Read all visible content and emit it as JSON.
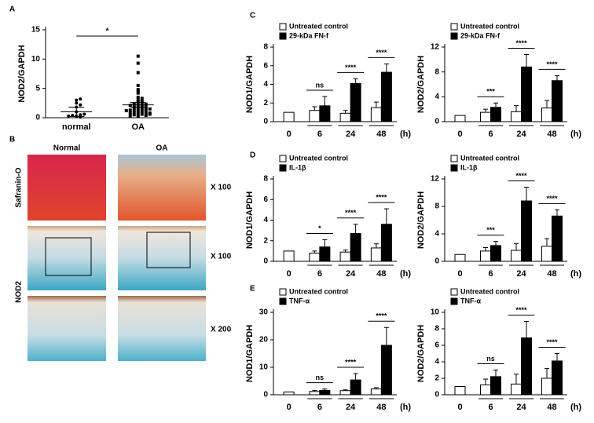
{
  "panel_labels": [
    "A",
    "B",
    "C",
    "D",
    "E"
  ],
  "histology": {
    "columns": [
      "Normal",
      "OA"
    ],
    "rows": [
      "Safranin-O",
      "NOD2"
    ],
    "magnifications": [
      "X 100",
      "X 100",
      "X 200"
    ]
  },
  "chart_data": [
    {
      "type": "dot",
      "ylabel": "NOD2/GAPDH",
      "categories": [
        "normal",
        "OA"
      ],
      "markers": [
        "circle",
        "square"
      ],
      "values": [
        [
          0.2,
          0.3,
          0.5,
          1.8,
          2.2,
          2.5,
          3.0,
          3.2,
          0.4,
          0.1,
          0.6,
          1.0,
          0.3
        ],
        [
          10.5,
          9.3,
          7.7,
          5.5,
          4.8,
          4.5,
          4.2,
          3.5,
          3.3,
          3.0,
          2.8,
          2.7,
          2.5,
          2.4,
          2.3,
          2.2,
          2.0,
          1.9,
          1.8,
          1.7,
          1.6,
          1.5,
          1.4,
          1.3,
          1.2,
          1.1,
          1.0,
          0.9,
          0.8,
          0.7,
          0.6,
          0.5,
          0.4,
          0.3,
          0.2,
          0.8,
          1.5,
          2.1,
          1.2,
          0.6
        ]
      ],
      "means": [
        1.0,
        2.2
      ],
      "errors": [
        0.8,
        0.4
      ],
      "significance": "*",
      "ylim": [
        0,
        15
      ],
      "yticks": [
        0,
        5,
        10,
        15
      ]
    },
    {
      "type": "bar",
      "ylabel": "NOD1/GAPDH",
      "xlabel": "(h)",
      "categories": [
        "0",
        "6",
        "24",
        "48"
      ],
      "series": [
        {
          "name": "Untreated control",
          "color": "#ffffff",
          "values": [
            1,
            1.2,
            0.9,
            1.5
          ],
          "errors": [
            0,
            0.4,
            0.3,
            0.6
          ]
        },
        {
          "name": "29-kDa FN-f",
          "color": "#000000",
          "values": [
            null,
            1.7,
            4.1,
            5.3
          ],
          "errors": [
            null,
            1.0,
            0.5,
            0.9
          ]
        }
      ],
      "significance": [
        null,
        "ns",
        "****",
        "****"
      ],
      "ylim": [
        0,
        8
      ],
      "yticks": [
        0,
        2,
        4,
        6,
        8
      ]
    },
    {
      "type": "bar",
      "ylabel": "NOD2/GAPDH",
      "xlabel": "(h)",
      "categories": [
        "0",
        "6",
        "24",
        "48"
      ],
      "series": [
        {
          "name": "Untreated control",
          "color": "#ffffff",
          "values": [
            1,
            1.5,
            1.6,
            2.2
          ],
          "errors": [
            0,
            0.5,
            1.0,
            1.2
          ]
        },
        {
          "name": "29-kDa FN-f",
          "color": "#000000",
          "values": [
            null,
            2.3,
            8.8,
            6.6
          ],
          "errors": [
            null,
            0.7,
            2.0,
            0.8
          ]
        }
      ],
      "significance": [
        null,
        "***",
        "****",
        "****"
      ],
      "ylim": [
        0,
        12
      ],
      "yticks": [
        0,
        4,
        8,
        12
      ]
    },
    {
      "type": "bar",
      "ylabel": "NOD1/GAPDH",
      "xlabel": "(h)",
      "categories": [
        "0",
        "6",
        "24",
        "48"
      ],
      "series": [
        {
          "name": "Untreated control",
          "color": "#ffffff",
          "values": [
            1,
            0.8,
            0.9,
            1.3
          ],
          "errors": [
            0,
            0.2,
            0.2,
            0.4
          ]
        },
        {
          "name": "IL-1β",
          "color": "#000000",
          "values": [
            null,
            1.4,
            2.7,
            3.6
          ],
          "errors": [
            null,
            0.7,
            0.9,
            1.5
          ]
        }
      ],
      "significance": [
        null,
        "*",
        "****",
        "****"
      ],
      "ylim": [
        0,
        8
      ],
      "yticks": [
        0,
        2,
        4,
        6,
        8
      ]
    },
    {
      "type": "bar",
      "ylabel": "NOD2/GAPDH",
      "xlabel": "(h)",
      "categories": [
        "0",
        "6",
        "24",
        "48"
      ],
      "series": [
        {
          "name": "Untreated control",
          "color": "#ffffff",
          "values": [
            1,
            1.5,
            1.6,
            2.2
          ],
          "errors": [
            0,
            0.5,
            1.0,
            1.1
          ]
        },
        {
          "name": "IL-1β",
          "color": "#000000",
          "values": [
            null,
            2.3,
            8.8,
            6.6
          ],
          "errors": [
            null,
            0.6,
            2.0,
            0.9
          ]
        }
      ],
      "significance": [
        null,
        "***",
        "****",
        "****"
      ],
      "ylim": [
        0,
        12
      ],
      "yticks": [
        0,
        4,
        8,
        12
      ]
    },
    {
      "type": "bar",
      "ylabel": "NOD1/GAPDH",
      "xlabel": "(h)",
      "categories": [
        "0",
        "6",
        "24",
        "48"
      ],
      "series": [
        {
          "name": "Untreated control",
          "color": "#ffffff",
          "values": [
            1,
            1.2,
            1.5,
            2.1
          ],
          "errors": [
            0,
            0.4,
            0.3,
            0.5
          ]
        },
        {
          "name": "TNF-α",
          "color": "#000000",
          "values": [
            null,
            1.6,
            5.4,
            18
          ],
          "errors": [
            null,
            0.5,
            2.3,
            6.5
          ]
        }
      ],
      "significance": [
        null,
        "ns",
        "****",
        "****"
      ],
      "ylim": [
        0,
        30
      ],
      "yticks": [
        0,
        10,
        20,
        30
      ]
    },
    {
      "type": "bar",
      "ylabel": "NOD2/GAPDH",
      "xlabel": "(h)",
      "categories": [
        "0",
        "6",
        "24",
        "48"
      ],
      "series": [
        {
          "name": "Untreated control",
          "color": "#ffffff",
          "values": [
            1,
            1.2,
            1.3,
            2.0
          ],
          "errors": [
            0,
            0.7,
            1.2,
            1.2
          ]
        },
        {
          "name": "TNF-α",
          "color": "#000000",
          "values": [
            null,
            2.2,
            6.9,
            4.1
          ],
          "errors": [
            null,
            0.8,
            2.0,
            0.9
          ]
        }
      ],
      "significance": [
        null,
        "ns",
        "****",
        "****"
      ],
      "ylim": [
        0,
        10
      ],
      "yticks": [
        0,
        2,
        4,
        6,
        8,
        10
      ]
    }
  ]
}
